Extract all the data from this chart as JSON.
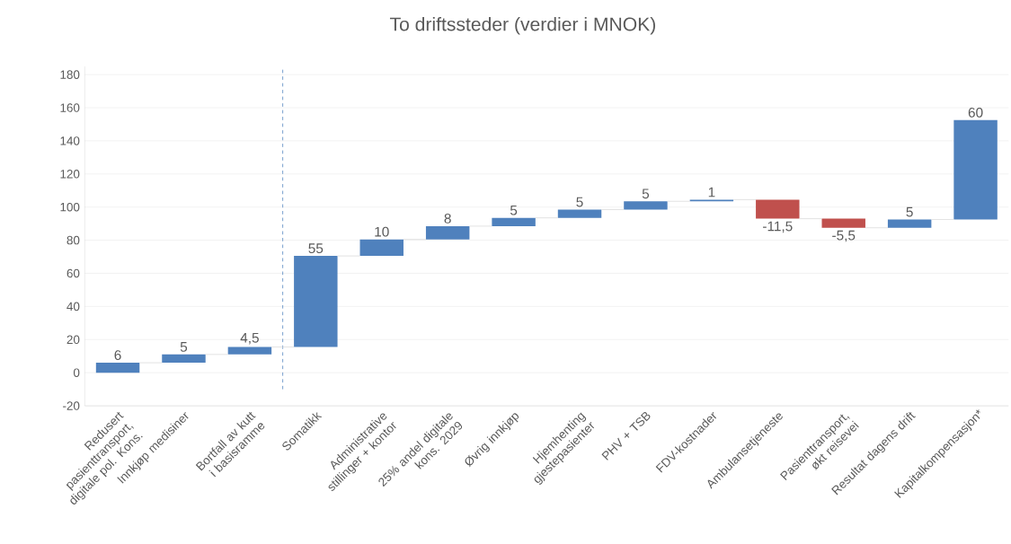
{
  "chart_data": {
    "type": "bar",
    "title": "To driftssteder (verdier i MNOK)",
    "categories": [
      "Redusert pasienttransport, digitale pol. Kons.",
      "Innkjøp medisiner",
      "Bortfall av kutt i basisramme",
      "Somatikk",
      "Administrative stillinger + kontor",
      "25% andel digitale kons. 2029",
      "Øvrig innkjøp",
      "Hjemhenting gjestepasienter",
      "PHV + TSB",
      "FDV-kostnader",
      "Ambulansetjeneste",
      "Pasienttransport, økt reisevei",
      "Resultat dagens drift",
      "Kapitalkompensasjon*"
    ],
    "values": [
      6,
      5,
      4.5,
      55,
      10,
      8,
      5,
      5,
      5,
      1,
      -11.5,
      -5.5,
      5,
      60
    ],
    "base": [
      0,
      6,
      11,
      15.5,
      70.5,
      80.5,
      88.5,
      93.5,
      98.5,
      103.5,
      104.5,
      93,
      87.5,
      92.5
    ],
    "colors": [
      "#4f81bd",
      "#4f81bd",
      "#4f81bd",
      "#4f81bd",
      "#4f81bd",
      "#4f81bd",
      "#4f81bd",
      "#4f81bd",
      "#4f81bd",
      "#4f81bd",
      "#c0504d",
      "#c0504d",
      "#4f81bd",
      "#4f81bd"
    ],
    "value_labels": [
      "6",
      "5",
      "4,5",
      "55",
      "10",
      "8",
      "5",
      "5",
      "5",
      "1",
      "-11,5",
      "-5,5",
      "5",
      "60"
    ],
    "ylim": [
      -20,
      185
    ],
    "yticks": [
      -20,
      0,
      20,
      40,
      60,
      80,
      100,
      120,
      140,
      160,
      180
    ],
    "grid": "y"
  }
}
